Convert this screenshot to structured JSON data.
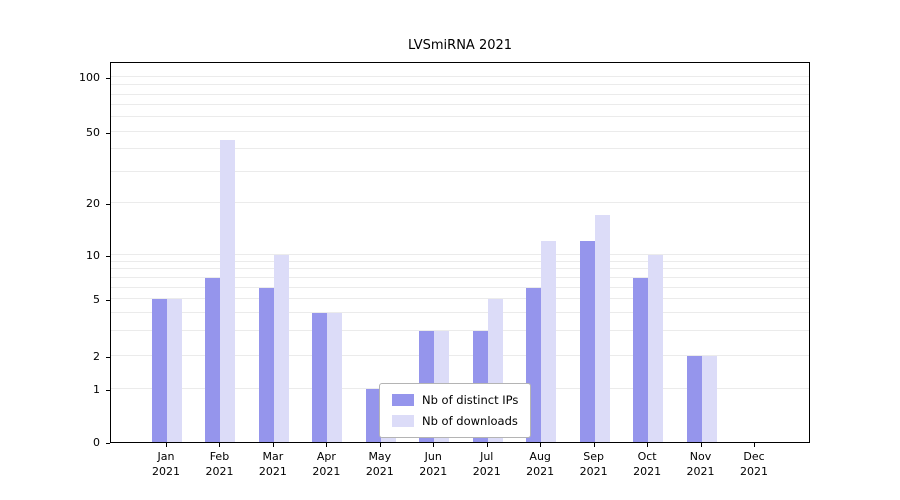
{
  "title": "LVSmiRNA 2021",
  "legend": {
    "series1_label": "Nb of distinct IPs",
    "series2_label": "Nb of downloads"
  },
  "colors": {
    "distinct_ips": "#9595ec",
    "downloads": "#dcdcf8",
    "grid": "#ebebeb",
    "axis": "#000000",
    "background": "#ffffff"
  },
  "chart_data": {
    "type": "bar",
    "title": "LVSmiRNA 2021",
    "xlabel": "",
    "ylabel": "",
    "scale": "symlog",
    "grid": "horizontal-minor",
    "legend_position": "lower center",
    "yticks": [
      0,
      1,
      2,
      5,
      10,
      20,
      50,
      100
    ],
    "ylim": [
      0,
      120
    ],
    "categories": [
      "Jan 2021",
      "Feb 2021",
      "Mar 2021",
      "Apr 2021",
      "May 2021",
      "Jun 2021",
      "Jul 2021",
      "Aug 2021",
      "Sep 2021",
      "Oct 2021",
      "Nov 2021",
      "Dec 2021"
    ],
    "categories_line1": [
      "Jan",
      "Feb",
      "Mar",
      "Apr",
      "May",
      "Jun",
      "Jul",
      "Aug",
      "Sep",
      "Oct",
      "Nov",
      "Dec"
    ],
    "categories_line2": [
      "2021",
      "2021",
      "2021",
      "2021",
      "2021",
      "2021",
      "2021",
      "2021",
      "2021",
      "2021",
      "2021",
      "2021"
    ],
    "series": [
      {
        "name": "Nb of distinct IPs",
        "color": "#9595ec",
        "values": [
          5,
          7,
          6,
          4,
          1,
          3,
          3,
          6,
          12,
          7,
          2,
          0
        ]
      },
      {
        "name": "Nb of downloads",
        "color": "#dcdcf8",
        "values": [
          5,
          45,
          10,
          4,
          1,
          3,
          5,
          12,
          17,
          10,
          2,
          0
        ]
      }
    ]
  }
}
